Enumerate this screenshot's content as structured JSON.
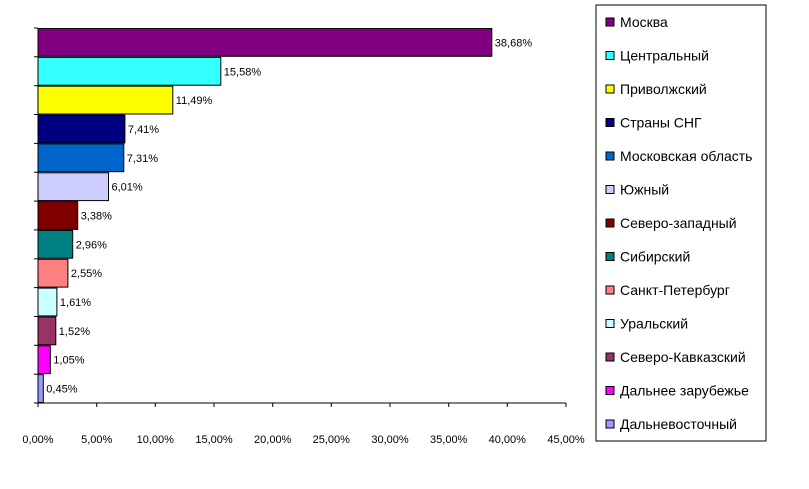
{
  "chart_data": {
    "type": "bar",
    "orientation": "horizontal",
    "title": "",
    "xlabel": "",
    "ylabel": "",
    "xlim": [
      0,
      45
    ],
    "x_tick_values": [
      0,
      5,
      10,
      15,
      20,
      25,
      30,
      35,
      40,
      45
    ],
    "x_tick_labels": [
      "0,00%",
      "5,00%",
      "10,00%",
      "15,00%",
      "20,00%",
      "25,00%",
      "30,00%",
      "35,00%",
      "40,00%",
      "45,00%"
    ],
    "grid": false,
    "legend_position": "right",
    "categories": [
      "Москва",
      "Центральный",
      "Приволжский",
      "Страны СНГ",
      "Московская область",
      "Южный",
      "Северо-западный",
      "Сибирский",
      "Санкт-Петербург",
      "Уральский",
      "Северо-Кавказский",
      "Дальнее зарубежье",
      "Дальневосточный"
    ],
    "values": [
      38.68,
      15.58,
      11.49,
      7.41,
      7.31,
      6.01,
      3.38,
      2.96,
      2.55,
      1.61,
      1.52,
      1.05,
      0.45
    ],
    "value_labels": [
      "38,68%",
      "15,58%",
      "11,49%",
      "7,41%",
      "7,31%",
      "6,01%",
      "3,38%",
      "2,96%",
      "2,55%",
      "1,61%",
      "1,52%",
      "1,05%",
      "0,45%"
    ],
    "colors": [
      "#800080",
      "#33FFFF",
      "#FFFF00",
      "#000080",
      "#0066CC",
      "#CCCCFF",
      "#800000",
      "#008080",
      "#FF8080",
      "#CCFFFF",
      "#993366",
      "#FF00FF",
      "#9999FF"
    ]
  }
}
